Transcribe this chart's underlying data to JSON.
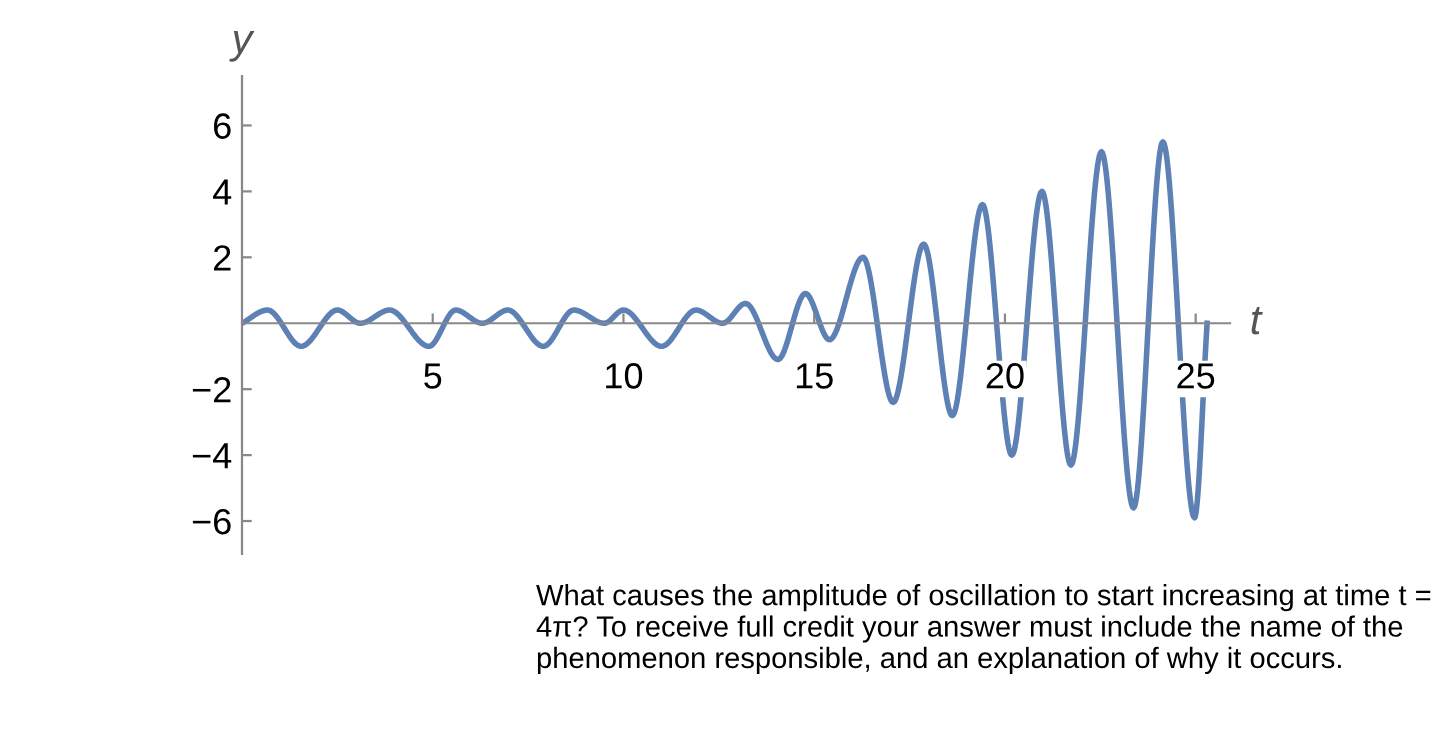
{
  "chart_data": {
    "type": "line",
    "xlabel": "t",
    "ylabel": "y",
    "x": [
      0,
      0.67,
      1.55,
      2.5,
      3.1,
      3.87,
      4.9,
      5.6,
      6.3,
      6.97,
      7.9,
      8.7,
      9.5,
      10.0,
      11.0,
      11.9,
      12.6,
      13.2,
      14.05,
      14.77,
      15.4,
      16.28,
      17.07,
      17.87,
      18.62,
      19.41,
      20.18,
      20.97,
      21.73,
      22.53,
      23.37,
      24.14,
      24.97,
      25.3
    ],
    "series": [
      {
        "color": "#5e81b5",
        "values": [
          0,
          0.4,
          -0.7,
          0.4,
          0,
          0.4,
          -0.7,
          0.4,
          0,
          0.4,
          -0.7,
          0.4,
          0,
          0.4,
          -0.7,
          0.4,
          0,
          0.6,
          -1.1,
          0.9,
          -0.5,
          2.0,
          -2.4,
          2.4,
          -2.8,
          3.6,
          -4.0,
          4.0,
          -4.3,
          5.2,
          -5.6,
          5.5,
          -5.9,
          0
        ]
      }
    ],
    "xlim": [
      0,
      25.9
    ],
    "ylim": [
      -7,
      7.5
    ],
    "xticks": [
      5,
      10,
      15,
      20,
      25
    ],
    "yticks": [
      -6,
      -4,
      -2,
      2,
      4,
      6
    ],
    "grid": false,
    "legend": false,
    "marker": "none",
    "line_style": "solid",
    "annotations": [
      "What causes the amplitude of oscillation to start increasing at time t = 4π? To receive full credit your answer must include the name of the phenomenon responsible, and an explanation of why it occurs."
    ]
  }
}
